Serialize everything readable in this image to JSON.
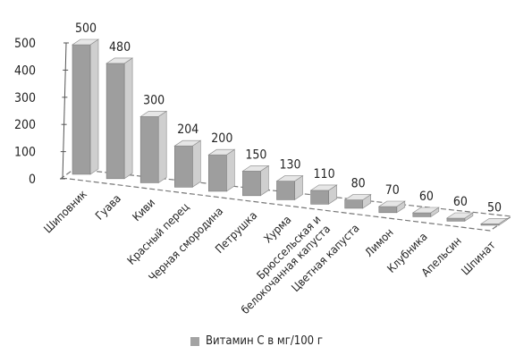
{
  "chart_data": {
    "type": "bar",
    "categories": [
      "Шиповник",
      "Гуава",
      "Киви",
      "Красный перец",
      "Черная смородина",
      "Петрушка",
      "Хурма",
      "Брюссельская и\nбелокочанная капуста",
      "Цветная капуста",
      "Лимон",
      "Клубника",
      "Апельсин",
      "Шпинат"
    ],
    "series": [
      {
        "name": "Витамин С в мг/100 г",
        "values": [
          500,
          480,
          300,
          204,
          200,
          150,
          130,
          110,
          80,
          70,
          60,
          60,
          50
        ]
      }
    ],
    "data_labels": [
      "500",
      "480",
      "300",
      "204",
      "200",
      "150",
      "130",
      "110",
      "80",
      "70",
      "60",
      "60",
      "50"
    ],
    "y_ticks": [
      "0",
      "100",
      "200",
      "300",
      "400",
      "500"
    ],
    "ylim": [
      0,
      500
    ],
    "title": "",
    "xlabel": "",
    "ylabel": "",
    "projection": "3d-perspective",
    "legend_position": "bottom",
    "colors": {
      "bar_front": "#9e9e9e",
      "bar_side": "#cfcfcf",
      "bar_top": "#e6e6e6",
      "axis": "#555555"
    }
  }
}
